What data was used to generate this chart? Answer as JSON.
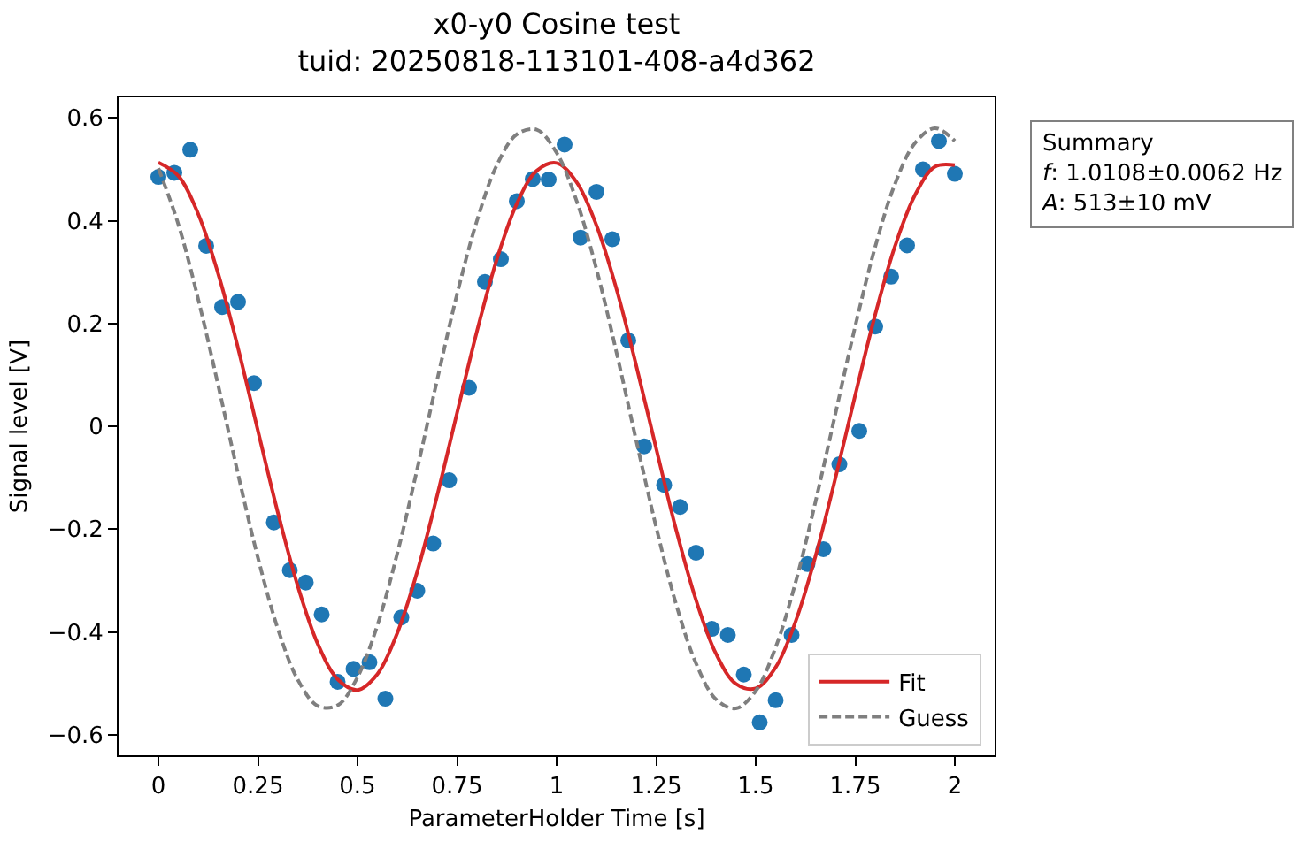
{
  "chart_data": {
    "type": "scatter",
    "title": "x0-y0 Cosine test\ntuid: 20250818-113101-408-a4d362",
    "xlabel": "ParameterHolder Time [s]",
    "ylabel": "Signal level [V]",
    "annotations": [
      "Summary\nf: 1.0108±0.0062 Hz\nA: 513±10 mV"
    ],
    "xlim": [
      -0.1,
      2.1
    ],
    "xticks": [
      0,
      0.25,
      0.5,
      0.75,
      1,
      1.25,
      1.5,
      1.75,
      2
    ],
    "ylim": [
      -0.64,
      0.64
    ],
    "yticks": [
      {
        "value": -0.6,
        "label": "−0.6"
      },
      {
        "value": -0.4,
        "label": "−0.4"
      },
      {
        "value": -0.2,
        "label": "−0.2"
      },
      0,
      0.2,
      0.4,
      0.6
    ],
    "grid": false,
    "legend": "bottom right",
    "series": [
      {
        "color": "#1f77b4",
        "marker": "circle",
        "x": [
          0,
          0.04,
          0.08,
          0.12,
          0.16,
          0.2,
          0.24,
          0.29,
          0.33,
          0.37,
          0.41,
          0.45,
          0.49,
          0.53,
          0.57,
          0.61,
          0.65,
          0.69,
          0.73,
          0.78,
          0.82,
          0.86,
          0.9,
          0.94,
          0.98,
          1.02,
          1.06,
          1.1,
          1.14,
          1.18,
          1.22,
          1.27,
          1.31,
          1.35,
          1.39,
          1.43,
          1.47,
          1.51,
          1.55,
          1.59,
          1.63,
          1.67,
          1.71,
          1.76,
          1.8,
          1.84,
          1.88,
          1.92,
          1.96,
          2
        ],
        "values": [
          0.485,
          0.493,
          0.538,
          0.351,
          0.232,
          0.242,
          0.084,
          -0.187,
          -0.28,
          -0.304,
          -0.366,
          -0.497,
          -0.472,
          -0.459,
          -0.53,
          -0.372,
          -0.32,
          -0.228,
          -0.105,
          0.075,
          0.281,
          0.325,
          0.438,
          0.481,
          0.48,
          0.548,
          0.367,
          0.456,
          0.364,
          0.167,
          -0.039,
          -0.114,
          -0.157,
          -0.246,
          -0.394,
          -0.406,
          -0.483,
          -0.576,
          -0.533,
          -0.406,
          -0.268,
          -0.239,
          -0.074,
          -0.009,
          0.194,
          0.291,
          0.352,
          0.5,
          0.555,
          0.491
        ]
      },
      {
        "type": "line",
        "name": "Fit",
        "color": "#d62728",
        "line_style": "solid",
        "x": [
          0,
          0.05,
          0.1,
          0.15,
          0.2,
          0.25,
          0.3,
          0.35,
          0.4,
          0.45,
          0.5,
          0.55,
          0.6,
          0.65,
          0.7,
          0.75,
          0.8,
          0.85,
          0.9,
          0.95,
          1,
          1.05,
          1.1,
          1.15,
          1.2,
          1.25,
          1.3,
          1.35,
          1.4,
          1.45,
          1.5,
          1.55,
          1.6,
          1.65,
          1.7,
          1.75,
          1.8,
          1.85,
          1.9,
          1.95,
          2
        ],
        "values": [
          0.513,
          0.487,
          0.413,
          0.297,
          0.152,
          -0.009,
          -0.168,
          -0.311,
          -0.423,
          -0.492,
          -0.513,
          -0.482,
          -0.402,
          -0.283,
          -0.135,
          0.026,
          0.185,
          0.325,
          0.433,
          0.497,
          0.512,
          0.475,
          0.391,
          0.268,
          0.118,
          -0.043,
          -0.201,
          -0.338,
          -0.442,
          -0.501,
          -0.51,
          -0.469,
          -0.38,
          -0.253,
          -0.101,
          0.061,
          0.217,
          0.351,
          0.45,
          0.505,
          0.508
        ]
      },
      {
        "type": "line",
        "name": "Guess",
        "color": "#7f7f7f",
        "line_style": "dashed",
        "x": [
          0,
          0.05,
          0.1,
          0.15,
          0.2,
          0.25,
          0.3,
          0.35,
          0.4,
          0.45,
          0.5,
          0.55,
          0.6,
          0.65,
          0.7,
          0.75,
          0.8,
          0.85,
          0.9,
          0.95,
          1,
          1.05,
          1.1,
          1.15,
          1.2,
          1.25,
          1.3,
          1.35,
          1.4,
          1.45,
          1.5,
          1.55,
          1.6,
          1.65,
          1.7,
          1.75,
          1.8,
          1.85,
          1.9,
          1.95,
          2
        ],
        "values": [
          0.502,
          0.393,
          0.247,
          0.08,
          -0.093,
          -0.256,
          -0.394,
          -0.493,
          -0.544,
          -0.543,
          -0.488,
          -0.387,
          -0.247,
          -0.083,
          0.09,
          0.257,
          0.4,
          0.508,
          0.568,
          0.577,
          0.532,
          0.439,
          0.306,
          0.145,
          -0.028,
          -0.196,
          -0.346,
          -0.461,
          -0.531,
          -0.549,
          -0.515,
          -0.43,
          -0.304,
          -0.147,
          0.024,
          0.195,
          0.349,
          0.472,
          0.551,
          0.58,
          0.555
        ]
      }
    ]
  }
}
